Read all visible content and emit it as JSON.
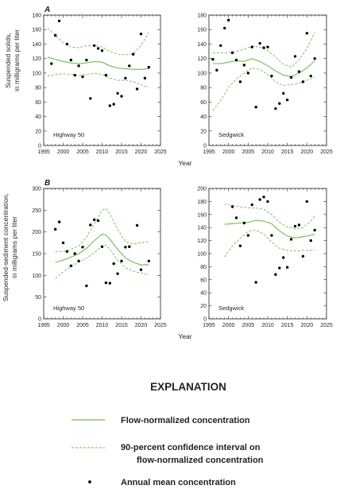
{
  "chart_data": [
    {
      "type": "line",
      "panel": "A",
      "site": "Highway 50",
      "xlim": [
        1995,
        2025
      ],
      "ylim": [
        0,
        180
      ],
      "xticks": [
        1995,
        2000,
        2005,
        2010,
        2015,
        2020,
        2025
      ],
      "yticks": [
        0,
        20,
        40,
        60,
        80,
        100,
        120,
        140,
        160,
        180
      ],
      "points": [
        [
          1997,
          113
        ],
        [
          1998,
          152
        ],
        [
          1999,
          172
        ],
        [
          2001,
          140
        ],
        [
          2002,
          118
        ],
        [
          2003,
          97
        ],
        [
          2004,
          110
        ],
        [
          2005,
          95
        ],
        [
          2006,
          118
        ],
        [
          2007,
          65
        ],
        [
          2008,
          138
        ],
        [
          2009,
          134
        ],
        [
          2010,
          131
        ],
        [
          2011,
          97
        ],
        [
          2012,
          55
        ],
        [
          2013,
          57
        ],
        [
          2014,
          72
        ],
        [
          2015,
          68
        ],
        [
          2016,
          93
        ],
        [
          2017,
          110
        ],
        [
          2018,
          126
        ],
        [
          2019,
          78
        ],
        [
          2020,
          154
        ],
        [
          2021,
          93
        ],
        [
          2022,
          108
        ]
      ],
      "series": [
        {
          "name": "Flow-normalized concentration",
          "x": [
            1996,
            1998,
            2000,
            2002,
            2004,
            2006,
            2008,
            2010,
            2012,
            2014,
            2016,
            2018,
            2020,
            2022
          ],
          "y": [
            122,
            119,
            116,
            114,
            113,
            114,
            116,
            115,
            110,
            107,
            106,
            105,
            105,
            106
          ]
        },
        {
          "name": "90-percent confidence interval upper",
          "x": [
            1996,
            1998,
            2000,
            2002,
            2004,
            2006,
            2008,
            2010,
            2012,
            2014,
            2016,
            2018,
            2020,
            2022
          ],
          "y": [
            162,
            152,
            142,
            136,
            135,
            138,
            138,
            136,
            130,
            126,
            125,
            127,
            138,
            156
          ]
        },
        {
          "name": "90-percent confidence interval lower",
          "x": [
            1996,
            1998,
            2000,
            2002,
            2004,
            2006,
            2008,
            2010,
            2012,
            2014,
            2016,
            2018,
            2020,
            2022
          ],
          "y": [
            96,
            98,
            99,
            98,
            97,
            98,
            100,
            98,
            93,
            90,
            90,
            88,
            84,
            80
          ]
        }
      ]
    },
    {
      "type": "line",
      "panel": "",
      "site": "Sedgwick",
      "xlim": [
        1995,
        2025
      ],
      "ylim": [
        0,
        180
      ],
      "xticks": [
        1995,
        2000,
        2005,
        2010,
        2015,
        2020,
        2025
      ],
      "yticks": [
        0,
        20,
        40,
        60,
        80,
        100,
        120,
        140,
        160,
        180
      ],
      "points": [
        [
          1996,
          119
        ],
        [
          1997,
          104
        ],
        [
          1998,
          138
        ],
        [
          1999,
          162
        ],
        [
          2000,
          173
        ],
        [
          2001,
          128
        ],
        [
          2002,
          118
        ],
        [
          2003,
          88
        ],
        [
          2004,
          111
        ],
        [
          2005,
          100
        ],
        [
          2006,
          136
        ],
        [
          2007,
          53
        ],
        [
          2008,
          141
        ],
        [
          2009,
          135
        ],
        [
          2010,
          136
        ],
        [
          2011,
          96
        ],
        [
          2012,
          51
        ],
        [
          2013,
          58
        ],
        [
          2014,
          72
        ],
        [
          2015,
          63
        ],
        [
          2016,
          94
        ],
        [
          2017,
          123
        ],
        [
          2018,
          102
        ],
        [
          2019,
          88
        ],
        [
          2020,
          155
        ],
        [
          2021,
          96
        ],
        [
          2022,
          120
        ]
      ],
      "series": [
        {
          "name": "Flow-normalized concentration",
          "x": [
            1996,
            1998,
            2000,
            2002,
            2004,
            2006,
            2008,
            2010,
            2012,
            2014,
            2016,
            2018,
            2020,
            2022
          ],
          "y": [
            113,
            113,
            115,
            117,
            116,
            120,
            116,
            110,
            103,
            97,
            95,
            100,
            107,
            117
          ]
        },
        {
          "name": "90-percent confidence interval upper",
          "x": [
            1996,
            1998,
            2000,
            2002,
            2004,
            2006,
            2008,
            2010,
            2012,
            2014,
            2016,
            2018,
            2020,
            2022
          ],
          "y": [
            128,
            128,
            128,
            130,
            133,
            137,
            136,
            131,
            122,
            112,
            108,
            118,
            134,
            156
          ]
        },
        {
          "name": "90-percent confidence interval lower",
          "x": [
            1996,
            1998,
            2000,
            2002,
            2004,
            2006,
            2008,
            2010,
            2012,
            2014,
            2016,
            2018,
            2020,
            2022
          ],
          "y": [
            48,
            62,
            80,
            92,
            100,
            107,
            105,
            98,
            88,
            83,
            84,
            86,
            90,
            94
          ]
        }
      ]
    },
    {
      "type": "line",
      "panel": "B",
      "site": "Highway 50",
      "xlim": [
        1995,
        2025
      ],
      "ylim": [
        0,
        300
      ],
      "xticks": [
        1995,
        2000,
        2005,
        2010,
        2015,
        2020,
        2025
      ],
      "yticks": [
        0,
        50,
        100,
        150,
        200,
        250,
        300
      ],
      "points": [
        [
          1998,
          206
        ],
        [
          1999,
          223
        ],
        [
          2000,
          175
        ],
        [
          2001,
          155
        ],
        [
          2002,
          122
        ],
        [
          2003,
          150
        ],
        [
          2004,
          133
        ],
        [
          2005,
          165
        ],
        [
          2006,
          76
        ],
        [
          2007,
          216
        ],
        [
          2008,
          228
        ],
        [
          2009,
          226
        ],
        [
          2010,
          166
        ],
        [
          2011,
          83
        ],
        [
          2012,
          82
        ],
        [
          2013,
          127
        ],
        [
          2014,
          104
        ],
        [
          2015,
          133
        ],
        [
          2016,
          165
        ],
        [
          2017,
          166
        ],
        [
          2019,
          215
        ],
        [
          2020,
          113
        ],
        [
          2022,
          133
        ]
      ],
      "series": [
        {
          "name": "Flow-normalized concentration",
          "x": [
            1998,
            2000,
            2002,
            2004,
            2006,
            2008,
            2010,
            2011,
            2012,
            2014,
            2016,
            2018,
            2020,
            2022
          ],
          "y": [
            130,
            135,
            142,
            150,
            162,
            180,
            195,
            193,
            183,
            160,
            140,
            130,
            124,
            125
          ]
        },
        {
          "name": "90-percent confidence interval upper",
          "x": [
            1998,
            2000,
            2002,
            2004,
            2006,
            2008,
            2010,
            2011,
            2012,
            2014,
            2016,
            2018,
            2020,
            2022
          ],
          "y": [
            155,
            155,
            160,
            168,
            188,
            218,
            250,
            254,
            242,
            205,
            178,
            172,
            175,
            178
          ]
        },
        {
          "name": "90-percent confidence interval lower",
          "x": [
            1998,
            2000,
            2002,
            2004,
            2006,
            2008,
            2010,
            2011,
            2012,
            2014,
            2016,
            2018,
            2020,
            2022
          ],
          "y": [
            93,
            108,
            120,
            130,
            140,
            152,
            168,
            170,
            160,
            135,
            118,
            110,
            105,
            102
          ]
        }
      ]
    },
    {
      "type": "line",
      "panel": "",
      "site": "Sedgwick",
      "xlim": [
        1995,
        2025
      ],
      "ylim": [
        0,
        200
      ],
      "xticks": [
        1995,
        2000,
        2005,
        2010,
        2015,
        2020,
        2025
      ],
      "yticks": [
        0,
        20,
        40,
        60,
        80,
        100,
        120,
        140,
        160,
        180,
        200
      ],
      "points": [
        [
          2001,
          172
        ],
        [
          2002,
          155
        ],
        [
          2003,
          112
        ],
        [
          2004,
          147
        ],
        [
          2005,
          128
        ],
        [
          2006,
          175
        ],
        [
          2007,
          56
        ],
        [
          2008,
          183
        ],
        [
          2009,
          187
        ],
        [
          2010,
          180
        ],
        [
          2011,
          128
        ],
        [
          2012,
          68
        ],
        [
          2013,
          78
        ],
        [
          2014,
          94
        ],
        [
          2015,
          79
        ],
        [
          2016,
          122
        ],
        [
          2017,
          142
        ],
        [
          2018,
          144
        ],
        [
          2019,
          96
        ],
        [
          2020,
          180
        ],
        [
          2021,
          120
        ],
        [
          2022,
          136
        ]
      ],
      "series": [
        {
          "name": "Flow-normalized concentration",
          "x": [
            1999,
            2001,
            2003,
            2005,
            2007,
            2009,
            2011,
            2013,
            2015,
            2017,
            2019,
            2021,
            2022
          ],
          "y": [
            145,
            146,
            147,
            148,
            151,
            150,
            146,
            135,
            127,
            124,
            126,
            128,
            130
          ]
        },
        {
          "name": "90-percent confidence interval upper",
          "x": [
            1999,
            2001,
            2003,
            2005,
            2007,
            2009,
            2011,
            2013,
            2015,
            2017,
            2019,
            2021,
            2022
          ],
          "y": [
            176,
            174,
            172,
            170,
            170,
            168,
            160,
            148,
            141,
            138,
            140,
            150,
            158
          ]
        },
        {
          "name": "90-percent confidence interval lower",
          "x": [
            1999,
            2001,
            2003,
            2005,
            2007,
            2009,
            2011,
            2013,
            2015,
            2017,
            2019,
            2021,
            2022
          ],
          "y": [
            95,
            112,
            124,
            134,
            136,
            130,
            118,
            108,
            105,
            104,
            105,
            105,
            106
          ]
        }
      ]
    }
  ],
  "labels": {
    "row_a_ylabel_1": "Suspended solids,",
    "row_a_ylabel_2": "in milligrams per liter",
    "row_b_ylabel_1": "Suspended-sediment concentration,",
    "row_b_ylabel_2": "in milligrams per liter",
    "xlabel": "Year"
  },
  "legend": {
    "title": "EXPLANATION",
    "flow_normalized": "Flow-normalized concentration",
    "ci_line1": "90-percent confidence interval on",
    "ci_line2": "flow-normalized concentration",
    "annual_mean": "Annual mean concentration"
  },
  "colors": {
    "trend": "#6cc04a",
    "points": "#000000",
    "axis": "#231f20"
  }
}
